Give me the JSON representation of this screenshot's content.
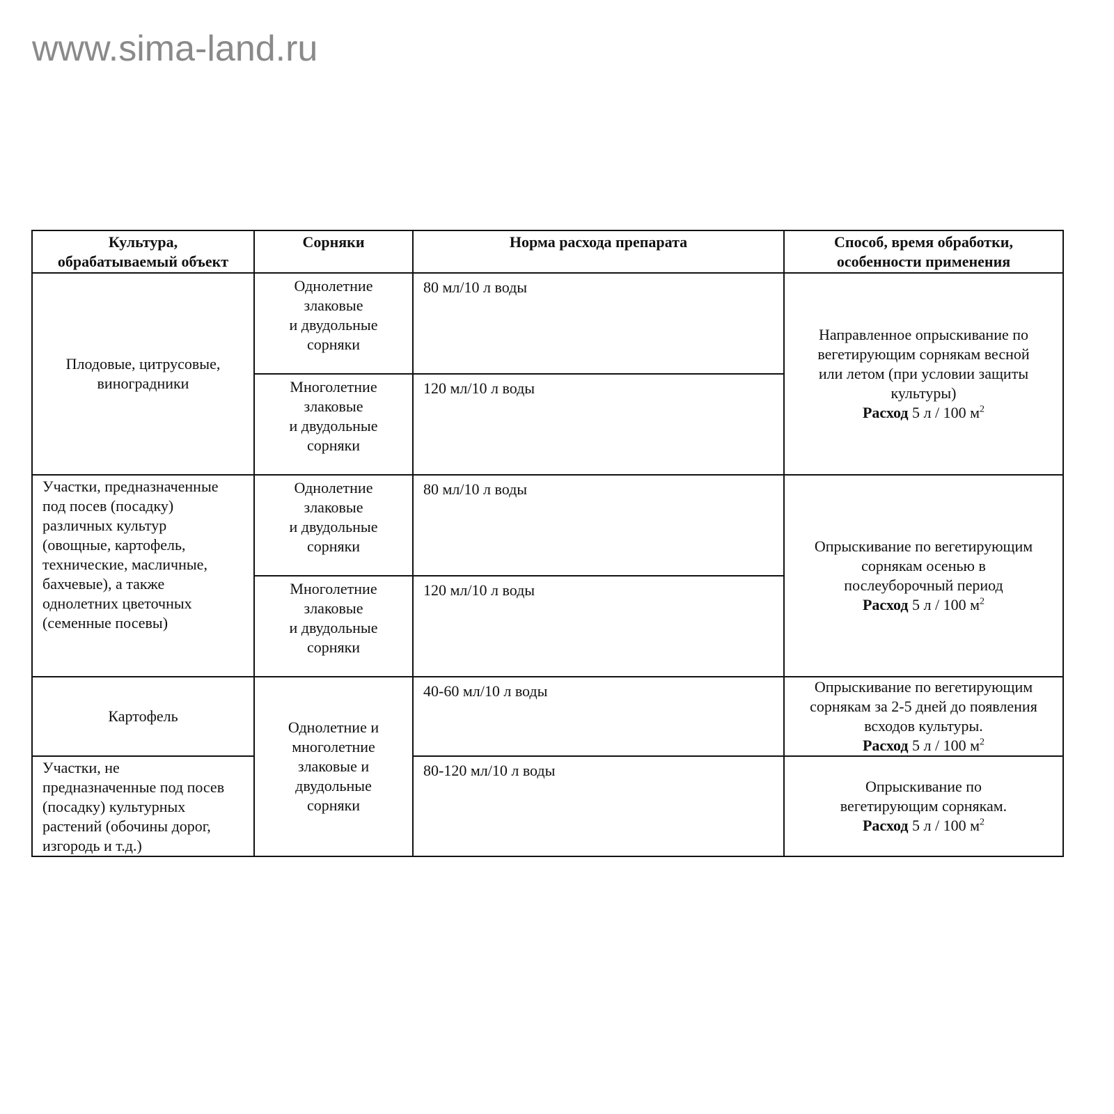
{
  "watermark": "www.sima-land.ru",
  "table": {
    "headers": [
      "Культура,\nобрабатываемый объект",
      "Сорняки",
      "Норма расхода препарата",
      "Способ, время обработки,\nособенности применения"
    ],
    "usage_label": "Расход",
    "usage_value": " 5 л / 100 м",
    "usage_sup": "2",
    "groups": [
      {
        "culture": "Плодовые, цитрусовые,\nвиноградники",
        "rows": [
          {
            "weeds": "Однолетние\nзлаковые\nи двудольные\nсорняки",
            "rate": "80 мл/10 л воды"
          },
          {
            "weeds": "Многолетние\nзлаковые\nи двудольные\nсорняки",
            "rate": "120 мл/10 л воды"
          }
        ],
        "method": "Направленное опрыскивание по\nвегетирующим сорнякам весной\nили летом (при условии защиты\nкультуры)"
      },
      {
        "culture": "Участки, предназначенные\nпод посев (посадку)\nразличных культур\n(овощные, картофель,\nтехнические, масличные,\nбахчевые), а также\nоднолетних цветочных\n(семенные посевы)",
        "rows": [
          {
            "weeds": "Однолетние\nзлаковые\nи двудольные\nсорняки",
            "rate": "80 мл/10 л воды"
          },
          {
            "weeds": "Многолетние\nзлаковые\nи двудольные\nсорняки",
            "rate": "120 мл/10 л воды"
          }
        ],
        "method": "Опрыскивание по вегетирующим\nсорнякам осенью в\nпослеуборочный период"
      },
      {
        "weeds": "Однолетние и\nмноголетние\nзлаковые и\nдвудольные\nсорняки",
        "rows": [
          {
            "culture": "Картофель",
            "rate": "40-60 мл/10 л воды",
            "method": "Опрыскивание по вегетирующим\nсорнякам за 2-5 дней до появления\nвсходов культуры."
          },
          {
            "culture": "Участки, не\nпредназначенные под посев\n(посадку) культурных\nрастений (обочины дорог,\nизгородь и т.д.)",
            "rate": "80-120  мл/10 л воды",
            "method": "Опрыскивание по\nвегетирующим сорнякам."
          }
        ]
      }
    ]
  }
}
